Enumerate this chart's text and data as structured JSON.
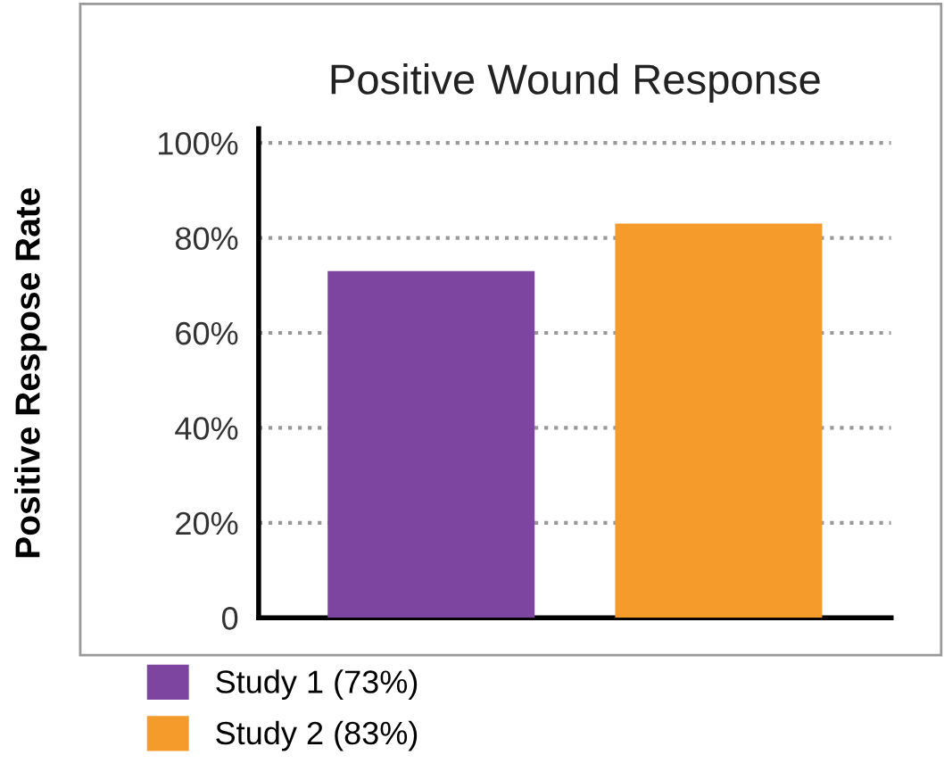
{
  "chart_data": {
    "type": "bar",
    "title": "Positive Wound Response",
    "ylabel": "Positive Respose Rate",
    "categories": [
      null,
      null
    ],
    "series": [
      {
        "name": "Study 1 (73%)",
        "color": "#7d45a0",
        "values": [
          73,
          null
        ]
      },
      {
        "name": "Study 2 (83%)",
        "color": "#f49b2c",
        "values": [
          null,
          83
        ]
      }
    ],
    "ylim": [
      0,
      103
    ],
    "yticks": [
      0,
      {
        "value": 20,
        "label": "20%"
      },
      {
        "value": 40,
        "label": "40%"
      },
      {
        "value": 60,
        "label": "60%"
      },
      {
        "value": 80,
        "label": "80%"
      },
      {
        "value": 100,
        "label": "100%"
      }
    ],
    "grid": "y",
    "legend": "bottom left"
  }
}
